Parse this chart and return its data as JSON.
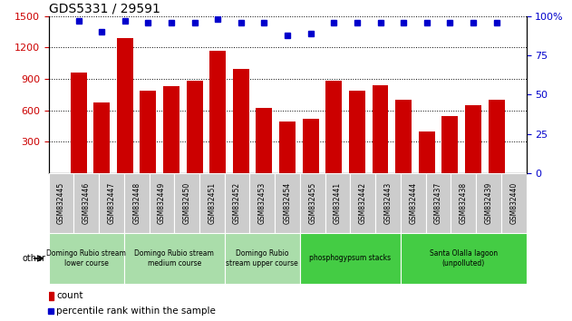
{
  "title": "GDS5331 / 29591",
  "samples": [
    "GSM832445",
    "GSM832446",
    "GSM832447",
    "GSM832448",
    "GSM832449",
    "GSM832450",
    "GSM832451",
    "GSM832452",
    "GSM832453",
    "GSM832454",
    "GSM832455",
    "GSM832441",
    "GSM832442",
    "GSM832443",
    "GSM832444",
    "GSM832437",
    "GSM832438",
    "GSM832439",
    "GSM832440"
  ],
  "counts": [
    960,
    680,
    1290,
    790,
    830,
    880,
    1170,
    1000,
    620,
    490,
    520,
    880,
    790,
    840,
    700,
    400,
    550,
    650,
    700
  ],
  "percentiles": [
    97,
    90,
    97,
    96,
    96,
    96,
    98,
    96,
    96,
    88,
    89,
    96,
    96,
    96,
    96,
    96,
    96,
    96,
    96
  ],
  "bar_color": "#cc0000",
  "dot_color": "#0000cc",
  "ylim_left": [
    0,
    1500
  ],
  "ylim_right": [
    0,
    100
  ],
  "yticks_left": [
    300,
    600,
    900,
    1200,
    1500
  ],
  "yticks_right": [
    0,
    25,
    50,
    75,
    100
  ],
  "ytick_right_labels": [
    "0",
    "25",
    "50",
    "75",
    "100%"
  ],
  "groups": [
    {
      "label": "Domingo Rubio stream\nlower course",
      "start": 0,
      "end": 3,
      "color": "#aaddaa"
    },
    {
      "label": "Domingo Rubio stream\nmedium course",
      "start": 3,
      "end": 7,
      "color": "#aaddaa"
    },
    {
      "label": "Domingo Rubio\nstream upper course",
      "start": 7,
      "end": 10,
      "color": "#aaddaa"
    },
    {
      "label": "phosphogypsum stacks",
      "start": 10,
      "end": 14,
      "color": "#44cc44"
    },
    {
      "label": "Santa Olalla lagoon\n(unpolluted)",
      "start": 14,
      "end": 19,
      "color": "#44cc44"
    }
  ],
  "other_label": "other",
  "legend_count_label": "count",
  "legend_pct_label": "percentile rank within the sample",
  "bar_bgcolor": "#cccccc",
  "left_axis_color": "#cc0000",
  "right_axis_color": "#0000cc",
  "grid_linestyle": "dotted",
  "grid_color": "#000000"
}
